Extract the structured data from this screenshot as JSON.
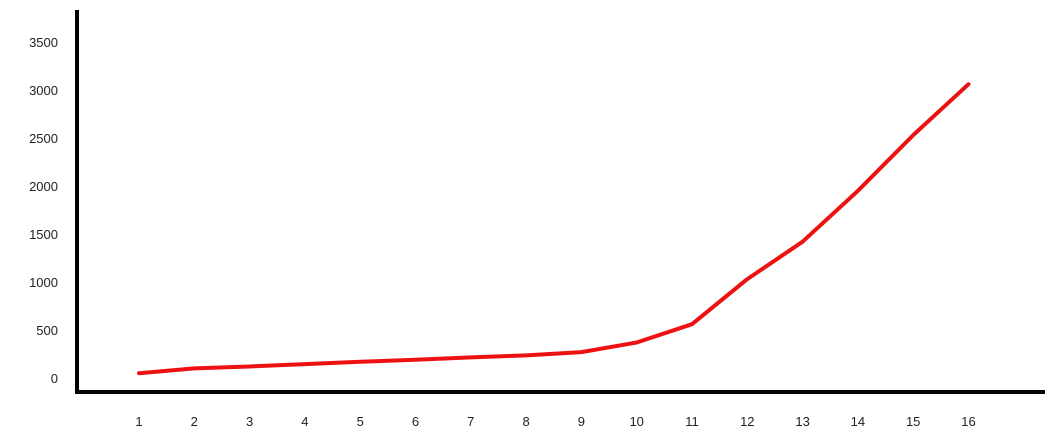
{
  "chart_data": {
    "type": "line",
    "title": "",
    "xlabel": "",
    "ylabel": "",
    "x": [
      "1",
      "2",
      "3",
      "4",
      "5",
      "6",
      "7",
      "8",
      "9",
      "10",
      "11",
      "12",
      "13",
      "14",
      "15",
      "16"
    ],
    "series": [
      {
        "color": "#ee1111",
        "points": [
          [
            0.0,
            50
          ],
          [
            1.0,
            100
          ],
          [
            2.0,
            120
          ],
          [
            3.0,
            145
          ],
          [
            4.0,
            170
          ],
          [
            5.0,
            190
          ],
          [
            6.0,
            215
          ],
          [
            7.0,
            235
          ],
          [
            8.0,
            270
          ],
          [
            9.0,
            370
          ],
          [
            10.0,
            560
          ],
          [
            11.0,
            1030
          ],
          [
            12.0,
            1420
          ],
          [
            13.0,
            1950
          ],
          [
            14.0,
            2530
          ],
          [
            15.0,
            3060
          ]
        ]
      }
    ],
    "yticks": [
      "0",
      "500",
      "1000",
      "1500",
      "2000",
      "2500",
      "3000",
      "3500"
    ],
    "ylim": [
      0,
      3500
    ],
    "grid": false,
    "legend": "none",
    "axis_color": "#000000"
  }
}
